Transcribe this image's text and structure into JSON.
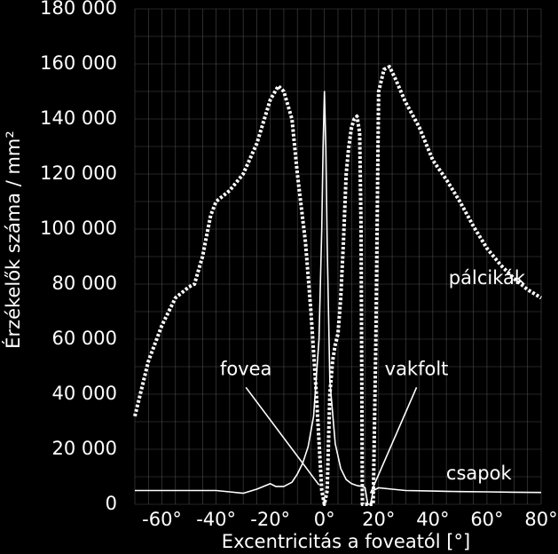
{
  "chart_data": {
    "type": "line",
    "xlabel": "Excentricitás a foveatól [°]",
    "ylabel": "Érzékelők száma / mm²",
    "xlim": [
      -70,
      80
    ],
    "ylim": [
      0,
      180000
    ],
    "grid": true,
    "x_ticks": [
      -60,
      -40,
      -20,
      0,
      20,
      40,
      60,
      80
    ],
    "x_tick_labels": [
      "-60°",
      "-40°",
      "-20°",
      "0°",
      "20°",
      "40°",
      "60°",
      "80°"
    ],
    "y_ticks": [
      0,
      20000,
      40000,
      60000,
      80000,
      100000,
      120000,
      140000,
      160000,
      180000
    ],
    "y_tick_labels": [
      "0",
      "20 000",
      "40 000",
      "60 000",
      "80 000",
      "100 000",
      "120 000",
      "140 000",
      "160 000",
      "180 000"
    ],
    "series": [
      {
        "name": "pálcikák",
        "style": "dotted",
        "x": [
          -70,
          -65,
          -60,
          -55,
          -50,
          -48,
          -45,
          -42,
          -40,
          -35,
          -30,
          -25,
          -20,
          -17,
          -15,
          -12,
          -10,
          -7,
          -5,
          -3,
          -1,
          0,
          1,
          2,
          3,
          4,
          5,
          6,
          7,
          8,
          9,
          10,
          11,
          12,
          13,
          13.5,
          14,
          14.5,
          15,
          16,
          17,
          18,
          19,
          20,
          22,
          24,
          26,
          30,
          35,
          40,
          45,
          50,
          55,
          60,
          65,
          70,
          75,
          80
        ],
        "y": [
          32000,
          52000,
          65000,
          75000,
          79000,
          80000,
          90000,
          105000,
          110000,
          114000,
          120000,
          131000,
          147000,
          152000,
          150000,
          140000,
          120000,
          95000,
          70000,
          40000,
          5000,
          0,
          5000,
          40000,
          52000,
          58000,
          62000,
          75000,
          95000,
          120000,
          130000,
          137000,
          140000,
          141000,
          135000,
          100000,
          0,
          0,
          0,
          0,
          0,
          0,
          60000,
          150000,
          158000,
          159000,
          155000,
          146000,
          137000,
          125000,
          118000,
          110000,
          101000,
          93000,
          87000,
          82000,
          78000,
          75000
        ]
      },
      {
        "name": "csapok",
        "style": "solid",
        "x": [
          -70,
          -60,
          -50,
          -40,
          -35,
          -30,
          -25,
          -20,
          -18,
          -15,
          -12,
          -10,
          -8,
          -6,
          -4,
          -2,
          -1,
          -0.5,
          0,
          0.5,
          1,
          2,
          4,
          6,
          8,
          10,
          12,
          14,
          15,
          16,
          17,
          18,
          20,
          25,
          30,
          40,
          50,
          60,
          70,
          80
        ],
        "y": [
          5000,
          5000,
          5000,
          5000,
          4500,
          4000,
          5500,
          7500,
          6500,
          6500,
          8000,
          11000,
          15000,
          21000,
          32000,
          60000,
          100000,
          130000,
          150000,
          130000,
          95000,
          45000,
          22000,
          13000,
          9000,
          7500,
          6800,
          6500,
          6000,
          0,
          0,
          5000,
          6000,
          5500,
          5000,
          4800,
          4600,
          4500,
          4400,
          4300
        ]
      }
    ],
    "annotations": [
      {
        "text": "pálcikák",
        "x": 60,
        "y": 80000
      },
      {
        "text": "csapok",
        "x": 57,
        "y": 9000
      },
      {
        "text": "fovea",
        "x": -29,
        "y": 47000,
        "pointer_to": [
          -2,
          7000
        ]
      },
      {
        "text": "vakfolt",
        "x": 34,
        "y": 47000,
        "pointer_to": [
          17,
          4000
        ]
      }
    ],
    "colors": {
      "background": "#000000",
      "foreground": "#ffffff",
      "grid": "#6a6a6a"
    }
  }
}
